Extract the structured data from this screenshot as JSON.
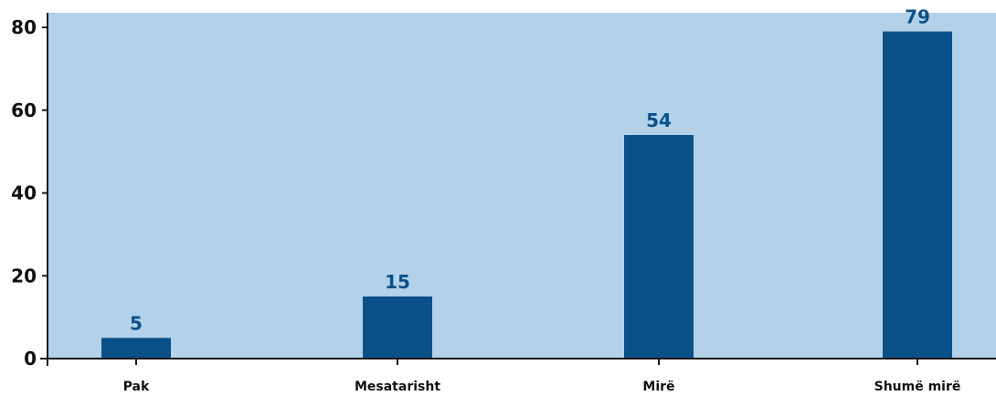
{
  "chart_data": {
    "type": "bar",
    "categories": [
      "Pak",
      "Mesatarisht",
      "Mirë",
      "Shumë mirë"
    ],
    "values": [
      5,
      15,
      54,
      79
    ],
    "data_labels": [
      "5",
      "15",
      "54",
      "79"
    ],
    "y_ticks": [
      "0",
      "20",
      "40",
      "60",
      "80"
    ],
    "title": "",
    "xlabel": "",
    "ylabel": "",
    "ylim": [
      0,
      80
    ],
    "grid": false,
    "legend": "none"
  },
  "colors": {
    "plot_background": "#b3d1e8",
    "bar": "#0a5089",
    "data_label": "#0a5089",
    "axis": "#1a1a1a",
    "text": "#111111"
  }
}
